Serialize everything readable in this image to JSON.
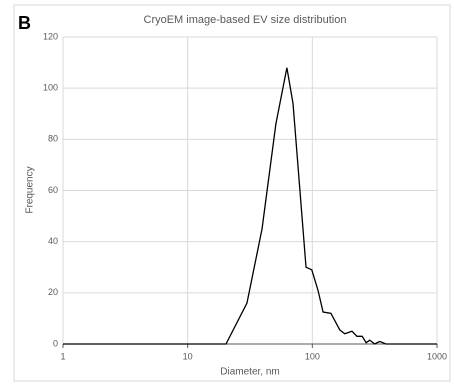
{
  "chart_data": {
    "type": "line",
    "panel_label": "B",
    "title": "CryoEM image-based EV size distribution",
    "x_label": "Diameter, nm",
    "y_label": "Frequency",
    "x_scale": "log",
    "xlim": [
      1,
      1000
    ],
    "xticks": [
      1,
      10,
      100,
      1000
    ],
    "ylim": [
      0,
      120
    ],
    "yticks": [
      0,
      20,
      40,
      60,
      80,
      100,
      120
    ],
    "grid": true,
    "series": [
      {
        "name": "Frequency",
        "color": "#000000",
        "x": [
          1,
          20.3,
          29.9,
          39.5,
          51,
          62.5,
          70,
          89,
          99,
          111,
          122,
          141,
          166,
          182,
          208,
          228,
          251,
          270,
          289,
          316,
          347,
          389,
          1000
        ],
        "values": [
          0,
          0,
          16,
          45,
          86,
          108,
          94,
          30,
          29,
          21,
          12.5,
          12,
          5.5,
          4,
          5,
          3,
          3,
          0.5,
          1.5,
          0,
          1,
          0,
          0
        ]
      }
    ]
  }
}
